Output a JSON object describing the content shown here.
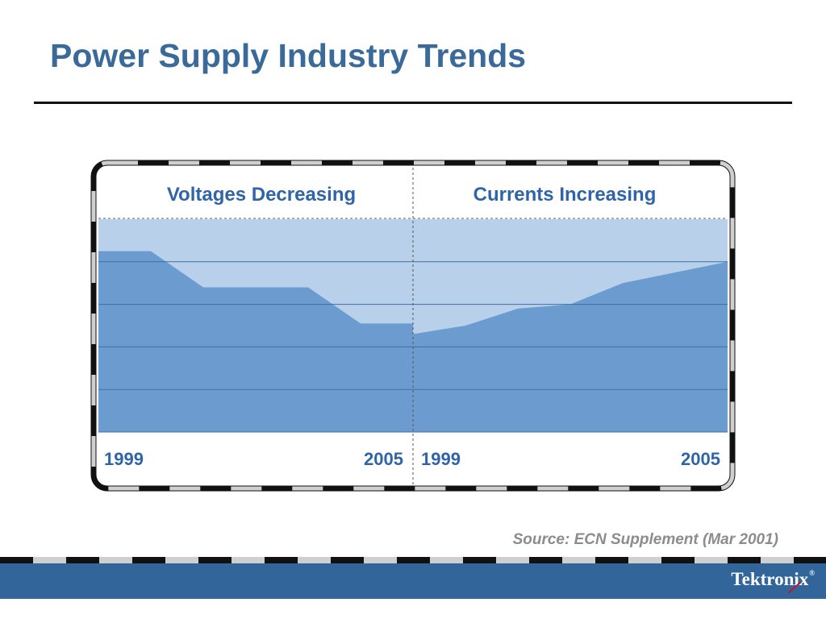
{
  "slide": {
    "title": "Power Supply Industry Trends",
    "source_note": "Source: ECN Supplement (Mar 2001)",
    "brand": "Tektronix"
  },
  "colors": {
    "title": "#3a6a9a",
    "area_fill": "#6b9bcf",
    "band_fill": "#b8d0ea",
    "grid_line": "#3f6fa5",
    "footer": "#32669a"
  },
  "chart_data": [
    {
      "type": "area",
      "title": "Voltages Decreasing",
      "x_start_label": "1999",
      "x_end_label": "2005",
      "ylim": [
        0,
        5
      ],
      "grid": true,
      "x": [
        1999,
        2000,
        2001,
        2002,
        2003,
        2004,
        2005
      ],
      "values": [
        4.25,
        4.25,
        3.4,
        3.4,
        3.4,
        2.55,
        2.55
      ]
    },
    {
      "type": "area",
      "title": "Currents Increasing",
      "x_start_label": "1999",
      "x_end_label": "2005",
      "ylim": [
        0,
        5
      ],
      "grid": true,
      "x": [
        1999,
        2000,
        2001,
        2002,
        2003,
        2004,
        2005
      ],
      "values": [
        2.3,
        2.5,
        2.9,
        3.0,
        3.5,
        3.75,
        4.0
      ]
    }
  ]
}
